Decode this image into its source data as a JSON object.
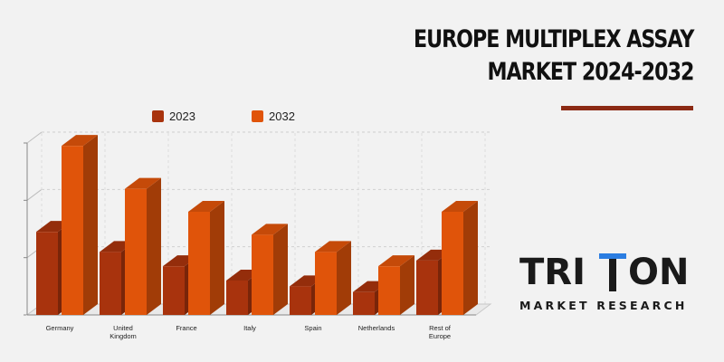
{
  "header": {
    "title_line1": "EUROPE MULTIPLEX ASSAY",
    "title_line2": "MARKET 2024-2032"
  },
  "brand": {
    "name": "TRITON",
    "tagline": "MARKET RESEARCH",
    "accent_color": "#2b7de1"
  },
  "chart_data": {
    "type": "bar",
    "style": "3d-clustered",
    "title": "EUROPE MULTIPLEX ASSAY MARKET 2024-2032",
    "categories": [
      "Germany",
      "United Kingdom",
      "France",
      "Italy",
      "Spain",
      "Netherlands",
      "Rest of Europe"
    ],
    "category_lines": [
      [
        "Germany"
      ],
      [
        "United",
        "Kingdom"
      ],
      [
        "France"
      ],
      [
        "Italy"
      ],
      [
        "Spain"
      ],
      [
        "Netherlands"
      ],
      [
        "Rest of",
        "Europe"
      ]
    ],
    "series": [
      {
        "name": "2023",
        "color": "#a8330d",
        "values": [
          29,
          22,
          17,
          12,
          10,
          8,
          19
        ]
      },
      {
        "name": "2032",
        "color": "#e0540a",
        "values": [
          59,
          44,
          36,
          28,
          22,
          17,
          36
        ]
      }
    ],
    "ylim": [
      0,
      60
    ],
    "y_axis_labels_shown": false,
    "grid": true,
    "legend_position": "top"
  }
}
